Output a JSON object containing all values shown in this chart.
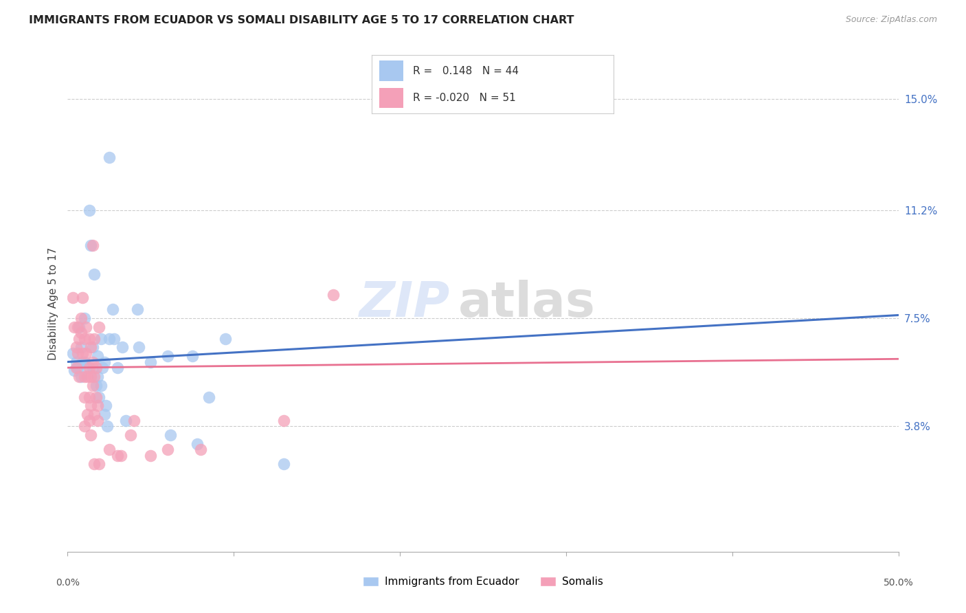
{
  "title": "IMMIGRANTS FROM ECUADOR VS SOMALI DISABILITY AGE 5 TO 17 CORRELATION CHART",
  "source": "Source: ZipAtlas.com",
  "ylabel": "Disability Age 5 to 17",
  "ytick_labels": [
    "3.8%",
    "7.5%",
    "11.2%",
    "15.0%"
  ],
  "ytick_values": [
    0.038,
    0.075,
    0.112,
    0.15
  ],
  "xlim": [
    0.0,
    0.5
  ],
  "ylim": [
    -0.005,
    0.165
  ],
  "legend_label1": "Immigrants from Ecuador",
  "legend_label2": "Somalis",
  "color_ecuador": "#a8c8f0",
  "color_somali": "#f4a0b8",
  "color_ecuador_line": "#4472c4",
  "color_somali_line": "#e87090",
  "ecuador_points": [
    [
      0.003,
      0.063
    ],
    [
      0.004,
      0.057
    ],
    [
      0.005,
      0.06
    ],
    [
      0.006,
      0.058
    ],
    [
      0.007,
      0.072
    ],
    [
      0.008,
      0.055
    ],
    [
      0.008,
      0.065
    ],
    [
      0.009,
      0.06
    ],
    [
      0.01,
      0.075
    ],
    [
      0.01,
      0.06
    ],
    [
      0.012,
      0.058
    ],
    [
      0.013,
      0.112
    ],
    [
      0.014,
      0.1
    ],
    [
      0.015,
      0.058
    ],
    [
      0.015,
      0.065
    ],
    [
      0.016,
      0.09
    ],
    [
      0.017,
      0.052
    ],
    [
      0.018,
      0.062
    ],
    [
      0.018,
      0.055
    ],
    [
      0.019,
      0.048
    ],
    [
      0.02,
      0.068
    ],
    [
      0.02,
      0.052
    ],
    [
      0.021,
      0.058
    ],
    [
      0.022,
      0.042
    ],
    [
      0.022,
      0.06
    ],
    [
      0.023,
      0.045
    ],
    [
      0.024,
      0.038
    ],
    [
      0.025,
      0.13
    ],
    [
      0.025,
      0.068
    ],
    [
      0.027,
      0.078
    ],
    [
      0.028,
      0.068
    ],
    [
      0.03,
      0.058
    ],
    [
      0.033,
      0.065
    ],
    [
      0.035,
      0.04
    ],
    [
      0.042,
      0.078
    ],
    [
      0.043,
      0.065
    ],
    [
      0.05,
      0.06
    ],
    [
      0.06,
      0.062
    ],
    [
      0.062,
      0.035
    ],
    [
      0.075,
      0.062
    ],
    [
      0.078,
      0.032
    ],
    [
      0.085,
      0.048
    ],
    [
      0.095,
      0.068
    ],
    [
      0.13,
      0.025
    ]
  ],
  "somali_points": [
    [
      0.003,
      0.082
    ],
    [
      0.004,
      0.072
    ],
    [
      0.005,
      0.065
    ],
    [
      0.005,
      0.058
    ],
    [
      0.006,
      0.072
    ],
    [
      0.006,
      0.063
    ],
    [
      0.007,
      0.068
    ],
    [
      0.007,
      0.055
    ],
    [
      0.008,
      0.075
    ],
    [
      0.008,
      0.07
    ],
    [
      0.009,
      0.063
    ],
    [
      0.009,
      0.082
    ],
    [
      0.01,
      0.068
    ],
    [
      0.01,
      0.055
    ],
    [
      0.01,
      0.048
    ],
    [
      0.01,
      0.038
    ],
    [
      0.011,
      0.072
    ],
    [
      0.011,
      0.063
    ],
    [
      0.012,
      0.055
    ],
    [
      0.012,
      0.042
    ],
    [
      0.013,
      0.068
    ],
    [
      0.013,
      0.058
    ],
    [
      0.013,
      0.048
    ],
    [
      0.013,
      0.04
    ],
    [
      0.014,
      0.065
    ],
    [
      0.014,
      0.055
    ],
    [
      0.014,
      0.045
    ],
    [
      0.014,
      0.035
    ],
    [
      0.015,
      0.06
    ],
    [
      0.015,
      0.052
    ],
    [
      0.015,
      0.1
    ],
    [
      0.016,
      0.068
    ],
    [
      0.016,
      0.055
    ],
    [
      0.016,
      0.042
    ],
    [
      0.016,
      0.025
    ],
    [
      0.017,
      0.058
    ],
    [
      0.017,
      0.048
    ],
    [
      0.018,
      0.045
    ],
    [
      0.018,
      0.04
    ],
    [
      0.019,
      0.072
    ],
    [
      0.019,
      0.025
    ],
    [
      0.025,
      0.03
    ],
    [
      0.03,
      0.028
    ],
    [
      0.032,
      0.028
    ],
    [
      0.038,
      0.035
    ],
    [
      0.04,
      0.04
    ],
    [
      0.05,
      0.028
    ],
    [
      0.06,
      0.03
    ],
    [
      0.08,
      0.03
    ],
    [
      0.16,
      0.083
    ],
    [
      0.13,
      0.04
    ]
  ],
  "watermark_text1": "ZIP",
  "watermark_text2": "atlas"
}
